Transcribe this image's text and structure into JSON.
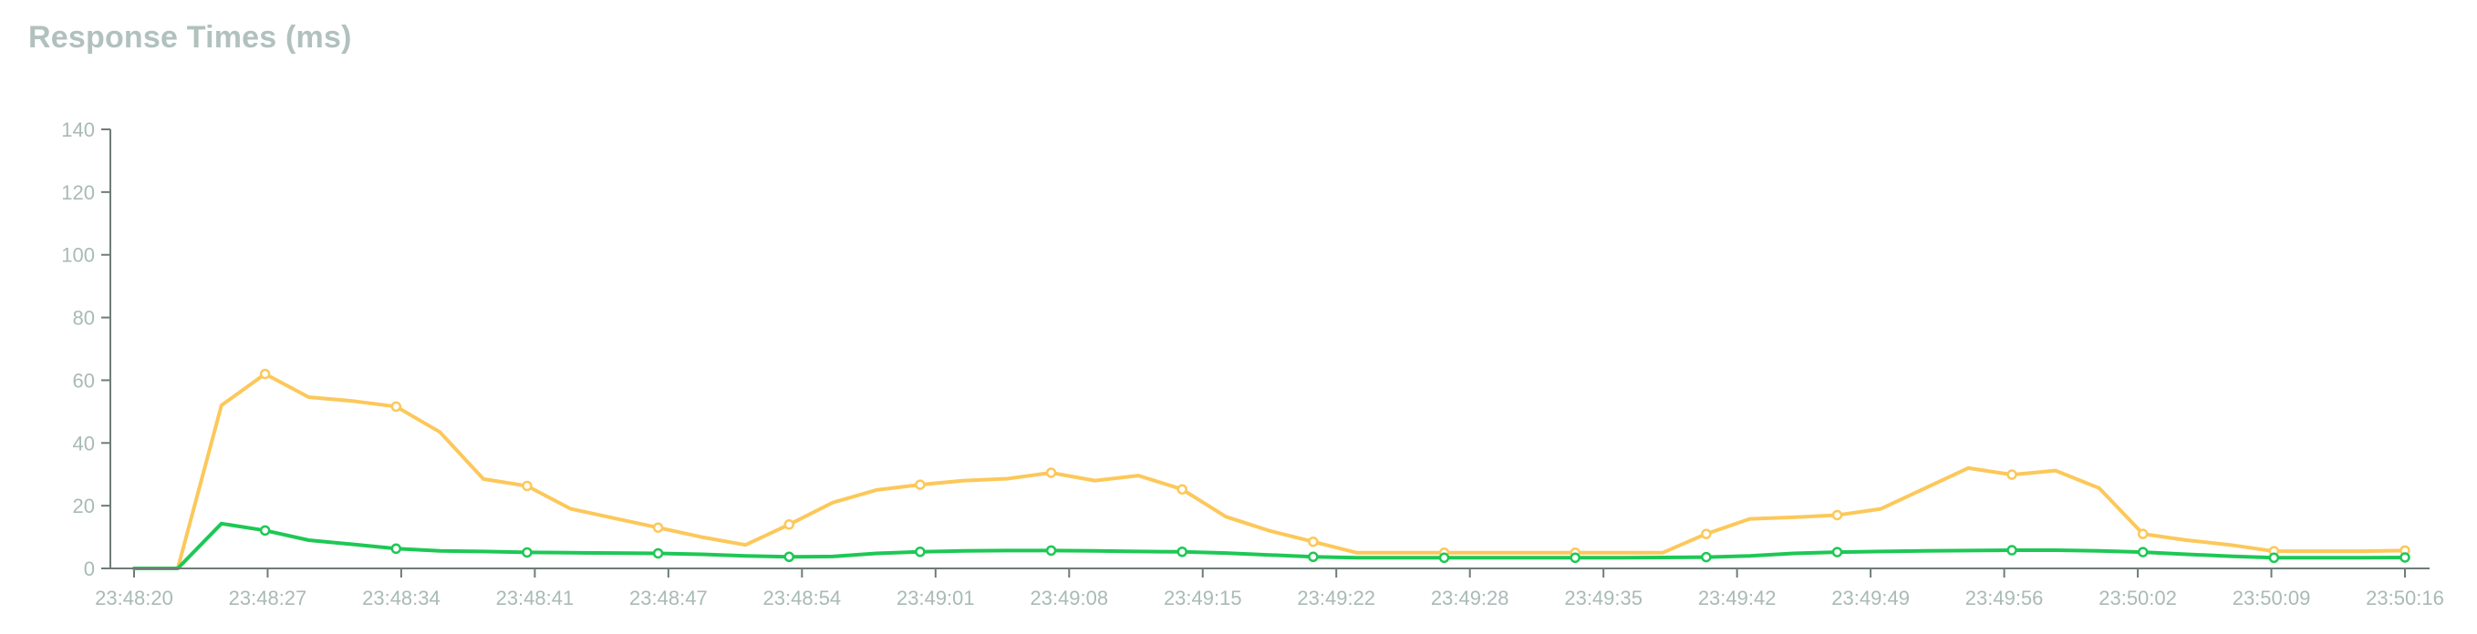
{
  "chart_data": {
    "type": "line",
    "title": "Response Times (ms)",
    "xlabel": "",
    "ylabel": "",
    "ylim": [
      0,
      140
    ],
    "yticks": [
      0,
      20,
      40,
      60,
      80,
      100,
      120,
      140
    ],
    "xticks": [
      "23:48:20",
      "23:48:27",
      "23:48:34",
      "23:48:41",
      "23:48:47",
      "23:48:54",
      "23:49:01",
      "23:49:08",
      "23:49:15",
      "23:49:22",
      "23:49:28",
      "23:49:35",
      "23:49:42",
      "23:49:49",
      "23:49:56",
      "23:50:02",
      "23:50:09",
      "23:50:16"
    ],
    "grid": false,
    "legend": "none",
    "series": [
      {
        "color": "#fcc85a",
        "values": [
          0,
          0,
          52,
          62,
          54.6,
          53.4,
          51.6,
          43.5,
          28.5,
          26.3,
          19,
          16,
          13,
          10,
          7.5,
          14,
          21,
          25,
          26.7,
          28,
          28.6,
          30.5,
          28,
          29.6,
          25.2,
          16.5,
          12,
          8.5,
          5,
          5,
          5,
          5,
          5,
          5,
          5,
          5,
          11,
          15.8,
          16.3,
          17,
          19,
          25.5,
          32,
          29.9,
          31.2,
          25.6,
          11,
          9,
          7.5,
          5.5,
          5.5,
          5.5,
          5.7
        ],
        "markers": [
          3,
          6,
          9,
          12,
          15,
          18,
          21,
          24,
          27,
          30,
          33,
          36,
          39,
          43,
          46,
          49,
          52
        ]
      },
      {
        "color": "#1dc855",
        "values": [
          0,
          0,
          14.3,
          12.1,
          9,
          7.7,
          6.3,
          5.6,
          5.4,
          5.1,
          5,
          4.9,
          4.8,
          4.5,
          4,
          3.7,
          3.8,
          4.8,
          5.3,
          5.6,
          5.7,
          5.7,
          5.6,
          5.4,
          5.3,
          4.9,
          4.3,
          3.7,
          3.4,
          3.4,
          3.4,
          3.4,
          3.4,
          3.4,
          3.4,
          3.5,
          3.6,
          4,
          4.8,
          5.2,
          5.4,
          5.6,
          5.7,
          5.8,
          5.8,
          5.6,
          5.2,
          4.5,
          3.9,
          3.4,
          3.4,
          3.4,
          3.5
        ],
        "markers": [
          3,
          6,
          9,
          12,
          15,
          18,
          21,
          24,
          27,
          30,
          33,
          36,
          39,
          43,
          46,
          49,
          52
        ]
      }
    ]
  }
}
